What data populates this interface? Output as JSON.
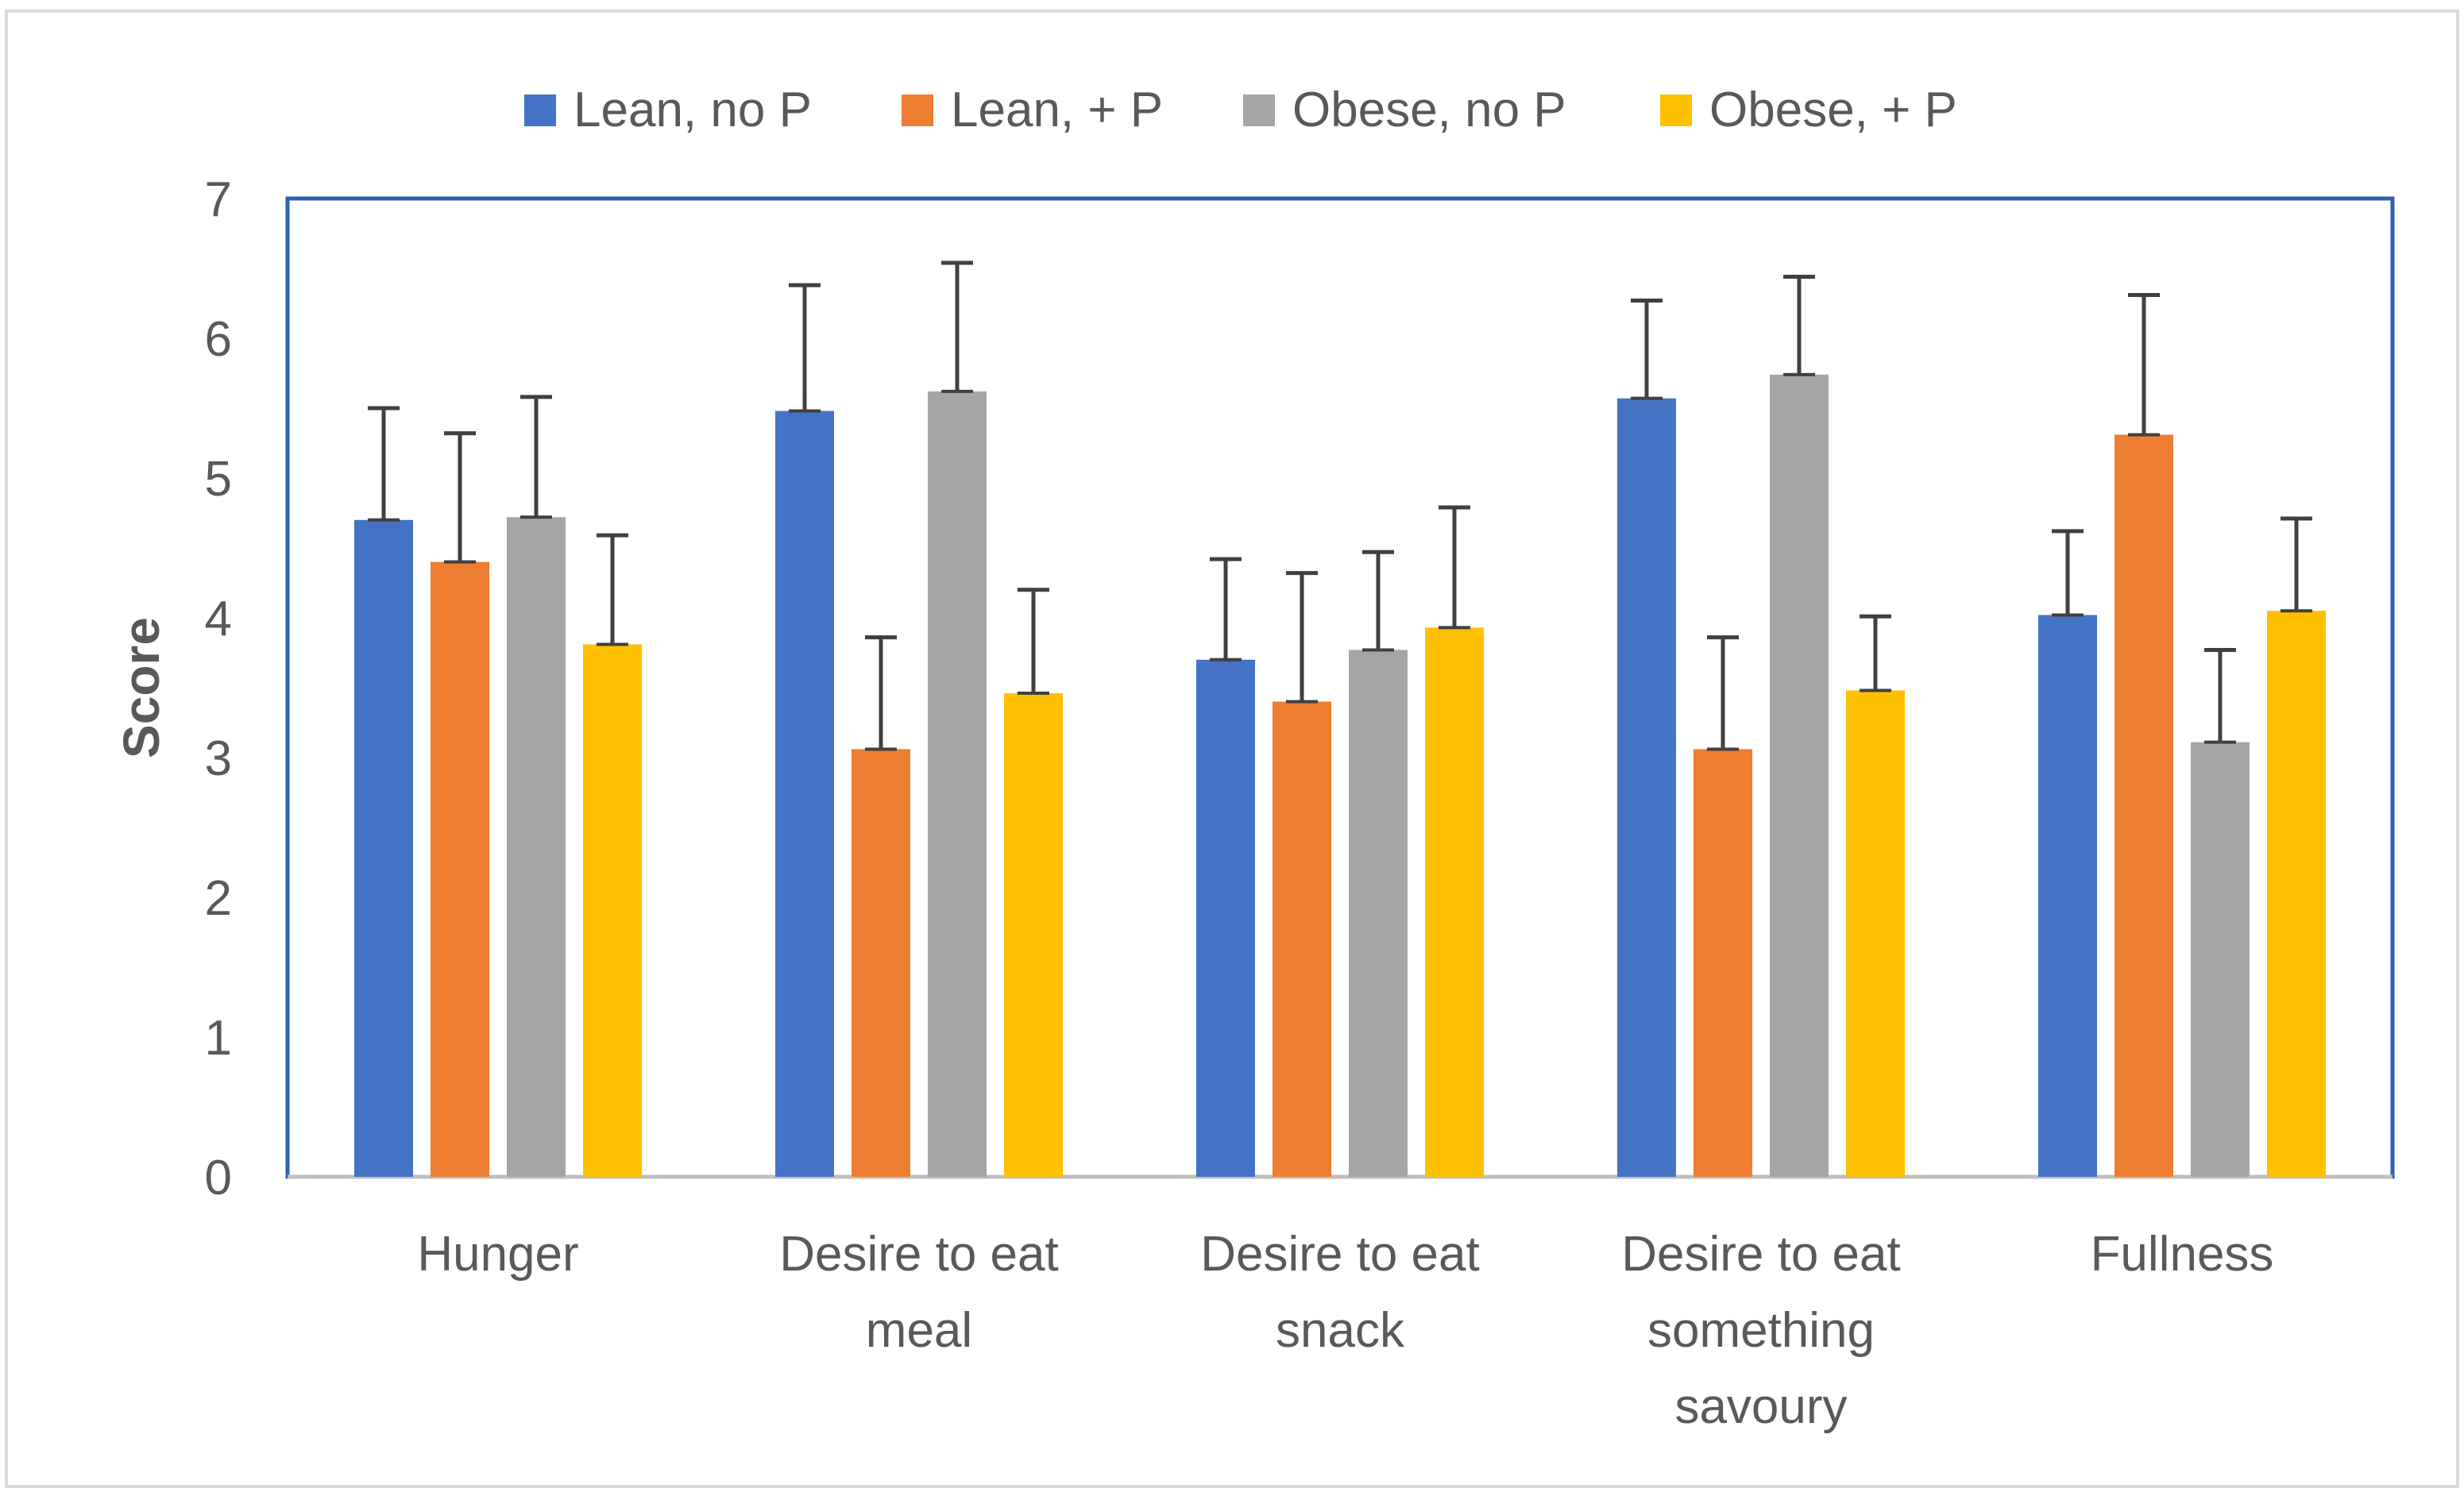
{
  "chart_data": {
    "type": "bar",
    "title": "",
    "xlabel": "",
    "ylabel": "Score",
    "ylim": [
      0,
      7
    ],
    "yticks": [
      0,
      1,
      2,
      3,
      4,
      5,
      6,
      7
    ],
    "grid": false,
    "legend_position": "top",
    "error_bars": true,
    "categories": [
      [
        "Hunger"
      ],
      [
        "Desire to eat",
        "meal"
      ],
      [
        "Desire to eat",
        "snack"
      ],
      [
        "Desire to eat",
        "something",
        "savoury"
      ],
      [
        "Fullness"
      ]
    ],
    "series": [
      {
        "name": "Lean, no P",
        "color": "#4472C4",
        "values": [
          4.7,
          5.48,
          3.7,
          5.57,
          4.02
        ],
        "error_upper": [
          0.8,
          0.9,
          0.72,
          0.7,
          0.6
        ]
      },
      {
        "name": "Lean, + P",
        "color": "#ED7D31",
        "values": [
          4.4,
          3.06,
          3.4,
          3.06,
          5.31
        ],
        "error_upper": [
          0.92,
          0.8,
          0.92,
          0.8,
          1.0
        ]
      },
      {
        "name": "Obese, no P",
        "color": "#A5A5A5",
        "values": [
          4.72,
          5.62,
          3.77,
          5.74,
          3.11
        ],
        "error_upper": [
          0.86,
          0.92,
          0.7,
          0.7,
          0.66
        ]
      },
      {
        "name": "Obese, + P",
        "color": "#FFC000",
        "values": [
          3.81,
          3.46,
          3.93,
          3.48,
          4.05
        ],
        "error_upper": [
          0.78,
          0.74,
          0.86,
          0.53,
          0.66
        ]
      }
    ]
  },
  "colors": {
    "plot_border": "#2E5FB8",
    "axis_text": "#595959",
    "error_bar": "#404040",
    "frame": "#D9D9D9"
  }
}
